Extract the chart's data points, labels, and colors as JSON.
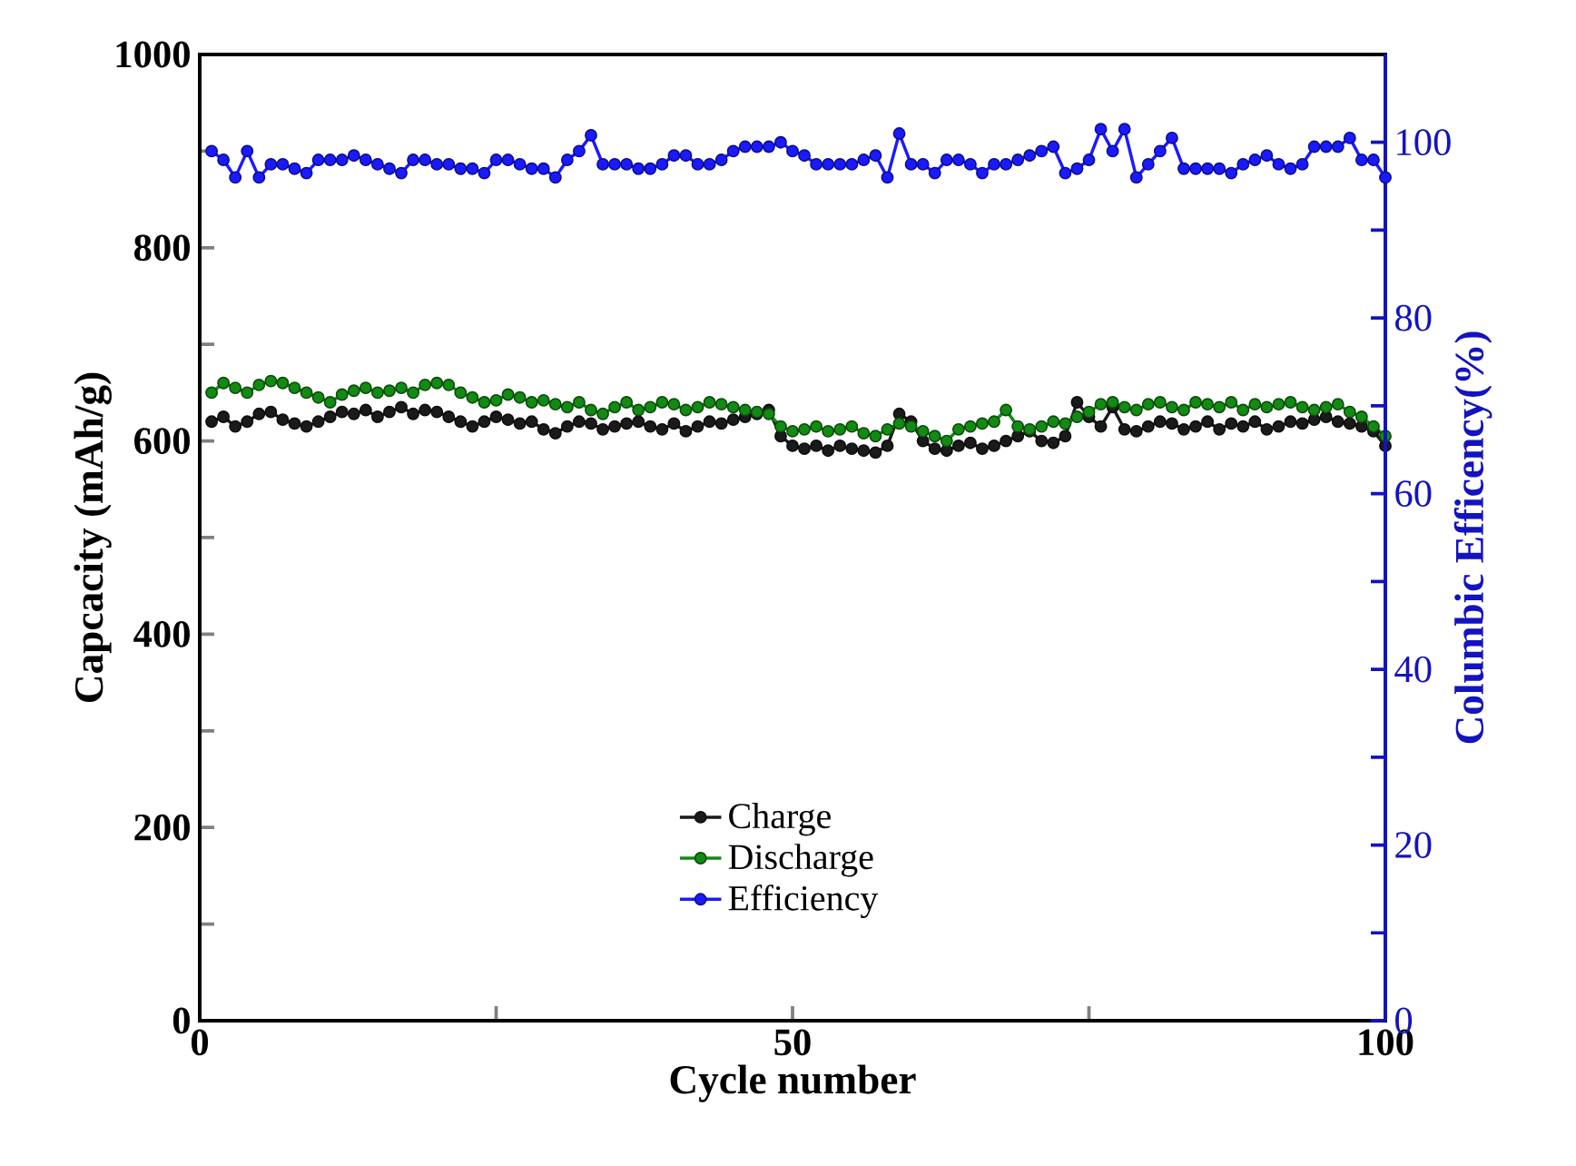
{
  "chart_data": {
    "type": "line",
    "xlabel": "Cycle number",
    "ylabel": "Capcacity (mAh/g)",
    "y2label": "Columbic Efficency(%)",
    "x": [
      1,
      2,
      3,
      4,
      5,
      6,
      7,
      8,
      9,
      10,
      11,
      12,
      13,
      14,
      15,
      16,
      17,
      18,
      19,
      20,
      21,
      22,
      23,
      24,
      25,
      26,
      27,
      28,
      29,
      30,
      31,
      32,
      33,
      34,
      35,
      36,
      37,
      38,
      39,
      40,
      41,
      42,
      43,
      44,
      45,
      46,
      47,
      48,
      49,
      50,
      51,
      52,
      53,
      54,
      55,
      56,
      57,
      58,
      59,
      60,
      61,
      62,
      63,
      64,
      65,
      66,
      67,
      68,
      69,
      70,
      71,
      72,
      73,
      74,
      75,
      76,
      77,
      78,
      79,
      80,
      81,
      82,
      83,
      84,
      85,
      86,
      87,
      88,
      89,
      90,
      91,
      92,
      93,
      94,
      95,
      96,
      97,
      98,
      99,
      100
    ],
    "series": [
      {
        "name": "Charge",
        "color": "#1a1a1a",
        "values": [
          620,
          625,
          615,
          620,
          628,
          630,
          622,
          618,
          615,
          620,
          625,
          630,
          628,
          632,
          625,
          630,
          635,
          628,
          632,
          630,
          625,
          620,
          615,
          620,
          625,
          622,
          618,
          620,
          612,
          608,
          615,
          620,
          618,
          612,
          615,
          618,
          620,
          615,
          612,
          618,
          610,
          615,
          620,
          618,
          622,
          625,
          628,
          632,
          605,
          595,
          592,
          595,
          590,
          595,
          592,
          590,
          588,
          595,
          628,
          620,
          600,
          592,
          590,
          595,
          598,
          592,
          595,
          600,
          605,
          610,
          600,
          598,
          605,
          640,
          625,
          615,
          635,
          612,
          610,
          615,
          620,
          618,
          612,
          615,
          620,
          612,
          618,
          615,
          620,
          612,
          615,
          620,
          618,
          622,
          625,
          620,
          618,
          615,
          610,
          595
        ]
      },
      {
        "name": "Discharge",
        "color": "#138a13",
        "values": [
          650,
          660,
          655,
          650,
          658,
          662,
          660,
          655,
          650,
          645,
          640,
          648,
          652,
          655,
          650,
          652,
          655,
          650,
          658,
          660,
          658,
          650,
          645,
          640,
          642,
          648,
          645,
          640,
          642,
          638,
          635,
          640,
          632,
          628,
          635,
          640,
          632,
          635,
          640,
          638,
          632,
          635,
          640,
          638,
          635,
          632,
          630,
          628,
          615,
          610,
          612,
          615,
          610,
          612,
          615,
          608,
          605,
          612,
          618,
          615,
          610,
          605,
          600,
          612,
          615,
          618,
          620,
          632,
          615,
          612,
          615,
          620,
          618,
          625,
          630,
          638,
          640,
          635,
          632,
          638,
          640,
          635,
          632,
          640,
          638,
          635,
          640,
          632,
          638,
          635,
          638,
          640,
          635,
          632,
          635,
          638,
          630,
          625,
          615,
          605
        ]
      },
      {
        "name": "Efficiency",
        "color": "#1a1aff",
        "axis": "y2",
        "values": [
          99,
          98,
          96,
          99,
          96,
          97.5,
          97.5,
          97,
          96.5,
          98,
          98,
          98,
          98.5,
          98,
          97.5,
          97,
          96.5,
          98,
          98,
          97.5,
          97.5,
          97,
          97,
          96.5,
          98,
          98,
          97.5,
          97,
          97,
          96,
          98,
          99,
          100.8,
          97.5,
          97.5,
          97.5,
          97,
          97,
          97.5,
          98.5,
          98.5,
          97.5,
          97.5,
          98,
          99,
          99.5,
          99.5,
          99.5,
          100,
          99,
          98.5,
          97.5,
          97.5,
          97.5,
          97.5,
          98,
          98.5,
          96,
          101,
          97.5,
          97.5,
          96.5,
          98,
          98,
          97.5,
          96.5,
          97.5,
          97.5,
          98,
          98.5,
          99,
          99.5,
          96.5,
          97,
          98,
          101.5,
          99,
          101.5,
          96,
          97.5,
          99,
          100.5,
          97,
          97,
          97,
          97,
          96.5,
          97.5,
          98,
          98.5,
          97.5,
          97,
          97.5,
          99.5,
          99.5,
          99.5,
          100.5,
          98,
          98,
          96
        ]
      }
    ],
    "xlim": [
      0,
      100
    ],
    "xticks": [
      0,
      {
        "value": 25,
        "label": null
      },
      50,
      {
        "value": 75,
        "label": null
      },
      100
    ],
    "ylim": [
      0,
      1000
    ],
    "yticks": [
      0,
      {
        "value": 100,
        "label": null
      },
      200,
      {
        "value": 300,
        "label": null
      },
      400,
      {
        "value": 500,
        "label": null
      },
      600,
      {
        "value": 700,
        "label": null
      },
      800,
      {
        "value": 900,
        "label": null
      },
      1000
    ],
    "y2lim": [
      0,
      110
    ],
    "y2ticks": [
      0,
      {
        "value": 10,
        "label": null
      },
      20,
      {
        "value": 30,
        "label": null
      },
      40,
      {
        "value": 50,
        "label": null
      },
      60,
      {
        "value": 70,
        "label": null
      },
      80,
      {
        "value": 90,
        "label": null
      },
      100
    ],
    "marker": "circle",
    "line_style": "solid",
    "legend": "bottom"
  }
}
